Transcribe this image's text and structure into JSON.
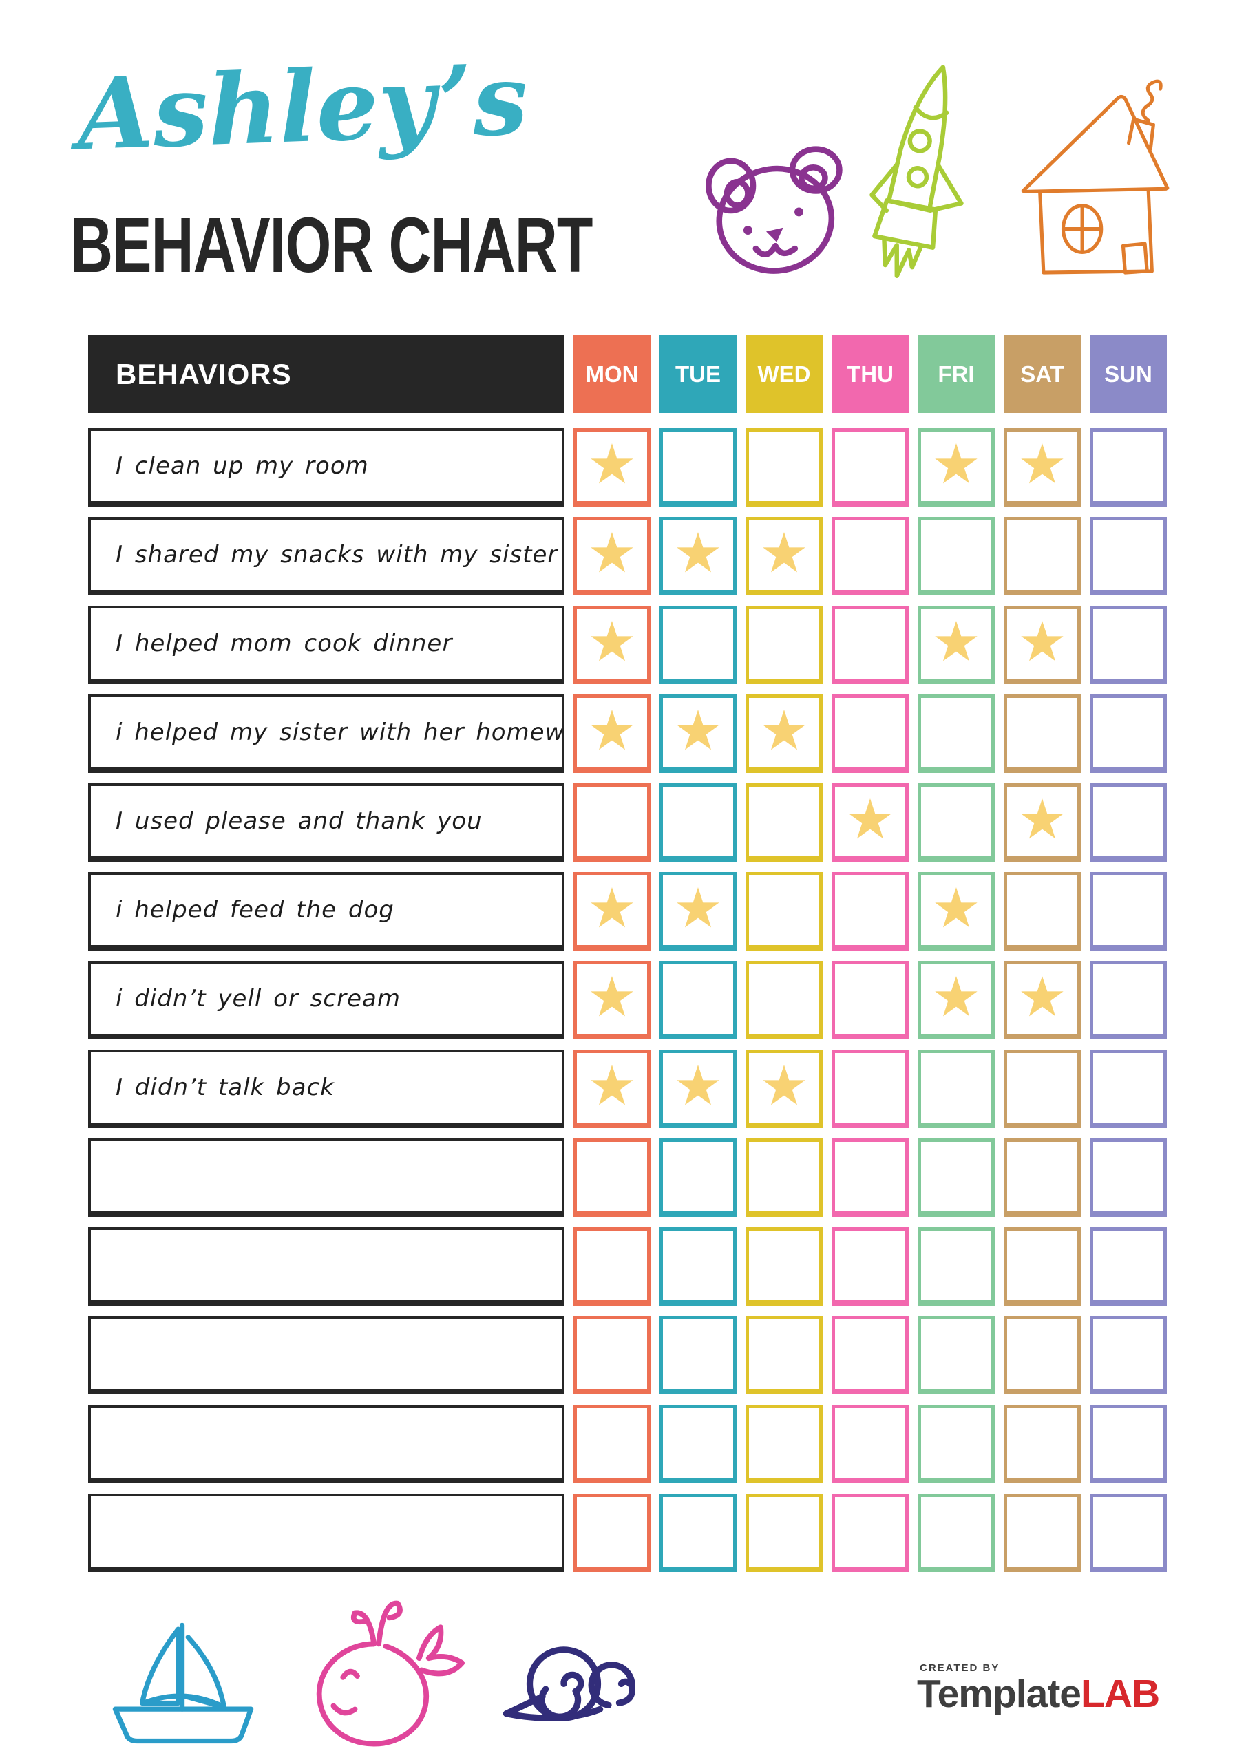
{
  "header": {
    "name": "Ashley’s",
    "title": "BEHAVIOR CHART",
    "accent_color": "#39afc3",
    "title_color": "#272727"
  },
  "doodles": {
    "bear_color": "#8a3390",
    "rocket_color": "#a9cc37",
    "house_color": "#e07c2c",
    "sailboat_color": "#2a9cc9",
    "whale_color": "#e0459b",
    "snail_color": "#322d7a"
  },
  "table": {
    "behaviors_header": "BEHAVIORS",
    "header_bg": "#262626",
    "header_text_color": "#ffffff",
    "star_glyph": "★",
    "star_color": "#f8d273",
    "days": [
      {
        "label": "MON",
        "color": "#ed7053"
      },
      {
        "label": "TUE",
        "color": "#2fa7b8"
      },
      {
        "label": "WED",
        "color": "#dfc32a"
      },
      {
        "label": "THU",
        "color": "#f268ae"
      },
      {
        "label": "FRI",
        "color": "#82c99a"
      },
      {
        "label": "SAT",
        "color": "#c89f66"
      },
      {
        "label": "SUN",
        "color": "#8b8ac8"
      }
    ],
    "rows": [
      {
        "label": "I clean up my room",
        "stars": [
          1,
          0,
          0,
          0,
          1,
          1,
          0
        ]
      },
      {
        "label": "I shared my snacks with my sister",
        "stars": [
          1,
          1,
          1,
          0,
          0,
          0,
          0
        ]
      },
      {
        "label": "I helped mom cook dinner",
        "stars": [
          1,
          0,
          0,
          0,
          1,
          1,
          0
        ]
      },
      {
        "label": "i helped my sister with her homework",
        "stars": [
          1,
          1,
          1,
          0,
          0,
          0,
          0
        ]
      },
      {
        "label": "I used please and thank you",
        "stars": [
          0,
          0,
          0,
          1,
          0,
          1,
          0
        ]
      },
      {
        "label": "i helped feed the dog",
        "stars": [
          1,
          1,
          0,
          0,
          1,
          0,
          0
        ]
      },
      {
        "label": "i didn’t yell or scream",
        "stars": [
          1,
          0,
          0,
          0,
          1,
          1,
          0
        ]
      },
      {
        "label": "I didn’t talk back",
        "stars": [
          1,
          1,
          1,
          0,
          0,
          0,
          0
        ]
      },
      {
        "label": "",
        "stars": [
          0,
          0,
          0,
          0,
          0,
          0,
          0
        ]
      },
      {
        "label": "",
        "stars": [
          0,
          0,
          0,
          0,
          0,
          0,
          0
        ]
      },
      {
        "label": "",
        "stars": [
          0,
          0,
          0,
          0,
          0,
          0,
          0
        ]
      },
      {
        "label": "",
        "stars": [
          0,
          0,
          0,
          0,
          0,
          0,
          0
        ]
      },
      {
        "label": "",
        "stars": [
          0,
          0,
          0,
          0,
          0,
          0,
          0
        ]
      }
    ]
  },
  "footer": {
    "created_by": "CREATED BY",
    "brand_primary": "Template",
    "brand_accent": "LAB",
    "brand_primary_color": "#3f3f3f",
    "brand_accent_color": "#d7282c"
  }
}
